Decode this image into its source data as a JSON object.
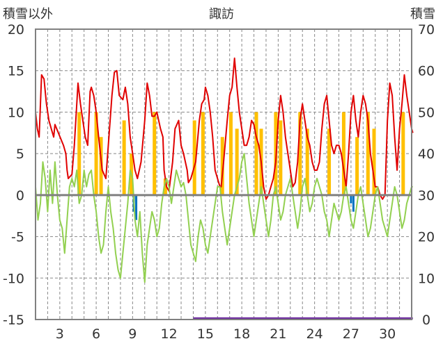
{
  "chart_data": {
    "type": "line",
    "title": "諏訪",
    "left_axis_label": "積雪以外",
    "right_axis_label": "積雪",
    "left_ylim": [
      -15,
      20
    ],
    "left_ticks": [
      -15,
      -10,
      -5,
      0,
      5,
      10,
      15,
      20
    ],
    "right_ylim": [
      0,
      70
    ],
    "right_ticks": [
      0,
      10,
      20,
      30,
      40,
      50,
      60,
      70
    ],
    "x_range": [
      1,
      32
    ],
    "x_ticks": [
      3,
      6,
      9,
      12,
      15,
      18,
      21,
      24,
      27,
      30
    ],
    "x_gridlines": [
      2,
      3,
      4,
      5,
      6,
      7,
      8,
      9,
      10,
      11,
      12,
      13,
      14,
      15,
      16,
      17,
      18,
      19,
      20,
      21,
      22,
      23,
      24,
      25,
      26,
      27,
      28,
      29,
      30,
      31
    ],
    "grid": true,
    "series": [
      {
        "key": "temperature",
        "color": "#e00000",
        "points": [
          [
            1.0,
            10
          ],
          [
            1.15,
            8
          ],
          [
            1.3,
            7
          ],
          [
            1.5,
            14.5
          ],
          [
            1.7,
            14
          ],
          [
            1.9,
            11
          ],
          [
            2.1,
            9
          ],
          [
            2.3,
            8
          ],
          [
            2.5,
            7
          ],
          [
            2.6,
            8.5
          ],
          [
            3.3,
            6
          ],
          [
            3.5,
            5
          ],
          [
            3.6,
            3
          ],
          [
            3.7,
            2
          ],
          [
            4.0,
            2.5
          ],
          [
            4.2,
            6
          ],
          [
            4.5,
            13.5
          ],
          [
            4.7,
            11
          ],
          [
            4.9,
            9
          ],
          [
            5.1,
            7
          ],
          [
            5.3,
            6
          ],
          [
            5.5,
            12.5
          ],
          [
            5.6,
            13
          ],
          [
            5.8,
            12
          ],
          [
            6.0,
            10
          ],
          [
            6.2,
            7
          ],
          [
            6.5,
            3
          ],
          [
            6.8,
            2
          ],
          [
            7.0,
            6
          ],
          [
            7.3,
            12
          ],
          [
            7.5,
            14.8
          ],
          [
            7.7,
            15
          ],
          [
            7.9,
            12
          ],
          [
            8.2,
            11.5
          ],
          [
            8.4,
            13
          ],
          [
            8.6,
            11
          ],
          [
            8.8,
            7
          ],
          [
            9.0,
            5
          ],
          [
            9.2,
            3
          ],
          [
            9.4,
            2
          ],
          [
            9.7,
            4
          ],
          [
            10.0,
            9
          ],
          [
            10.2,
            13.5
          ],
          [
            10.4,
            12
          ],
          [
            10.6,
            9.5
          ],
          [
            10.8,
            9.5
          ],
          [
            11.0,
            10
          ],
          [
            11.3,
            8
          ],
          [
            11.5,
            7
          ],
          [
            11.6,
            3
          ],
          [
            11.8,
            1
          ],
          [
            12.0,
            0.5
          ],
          [
            12.3,
            4
          ],
          [
            12.5,
            8
          ],
          [
            12.8,
            9
          ],
          [
            13.0,
            6
          ],
          [
            13.2,
            5
          ],
          [
            13.5,
            3
          ],
          [
            13.6,
            1.5
          ],
          [
            13.8,
            2
          ],
          [
            14.0,
            3
          ],
          [
            14.2,
            4
          ],
          [
            14.5,
            9
          ],
          [
            14.7,
            11
          ],
          [
            14.9,
            11.5
          ],
          [
            15.0,
            13
          ],
          [
            15.2,
            12
          ],
          [
            15.4,
            10
          ],
          [
            15.6,
            7
          ],
          [
            15.8,
            3
          ],
          [
            16.0,
            2
          ],
          [
            16.2,
            1
          ],
          [
            16.3,
            1
          ],
          [
            16.5,
            4
          ],
          [
            16.8,
            9
          ],
          [
            17.0,
            12
          ],
          [
            17.2,
            13
          ],
          [
            17.4,
            16.5
          ],
          [
            17.6,
            13
          ],
          [
            17.8,
            10
          ],
          [
            18.0,
            8
          ],
          [
            18.2,
            6
          ],
          [
            18.4,
            6
          ],
          [
            18.6,
            7
          ],
          [
            18.8,
            9
          ],
          [
            19.0,
            8.5
          ],
          [
            19.2,
            7
          ],
          [
            19.4,
            6
          ],
          [
            19.6,
            4
          ],
          [
            19.8,
            1
          ],
          [
            20.0,
            -0.5
          ],
          [
            20.2,
            0
          ],
          [
            20.4,
            1
          ],
          [
            20.6,
            2
          ],
          [
            20.8,
            4
          ],
          [
            21.0,
            9
          ],
          [
            21.2,
            12
          ],
          [
            21.4,
            10
          ],
          [
            21.6,
            7
          ],
          [
            21.8,
            5
          ],
          [
            22.0,
            3
          ],
          [
            22.2,
            1
          ],
          [
            22.4,
            1.5
          ],
          [
            22.6,
            4
          ],
          [
            22.8,
            9
          ],
          [
            23.0,
            11
          ],
          [
            23.2,
            9
          ],
          [
            23.4,
            7
          ],
          [
            23.6,
            6
          ],
          [
            23.8,
            4
          ],
          [
            24.0,
            3
          ],
          [
            24.2,
            3
          ],
          [
            24.4,
            4
          ],
          [
            24.6,
            8
          ],
          [
            24.8,
            11
          ],
          [
            25.0,
            12
          ],
          [
            25.2,
            9
          ],
          [
            25.4,
            6
          ],
          [
            25.6,
            5
          ],
          [
            25.8,
            6
          ],
          [
            26.0,
            6
          ],
          [
            26.2,
            5
          ],
          [
            26.4,
            3
          ],
          [
            26.6,
            1
          ],
          [
            26.8,
            5
          ],
          [
            27.0,
            10
          ],
          [
            27.2,
            12
          ],
          [
            27.4,
            9
          ],
          [
            27.6,
            7
          ],
          [
            27.8,
            10
          ],
          [
            28.0,
            12
          ],
          [
            28.2,
            11
          ],
          [
            28.4,
            9
          ],
          [
            28.6,
            5
          ],
          [
            28.8,
            3
          ],
          [
            29.0,
            1
          ],
          [
            29.2,
            1
          ],
          [
            29.4,
            0
          ],
          [
            29.6,
            -0.5
          ],
          [
            29.8,
            0
          ],
          [
            30.0,
            9
          ],
          [
            30.2,
            13.5
          ],
          [
            30.4,
            12
          ],
          [
            30.6,
            7
          ],
          [
            30.8,
            3
          ],
          [
            31.0,
            8
          ],
          [
            31.2,
            11
          ],
          [
            31.4,
            14.5
          ],
          [
            31.6,
            12
          ],
          [
            31.8,
            10
          ],
          [
            32.0,
            8
          ],
          [
            32.1,
            7.5
          ]
        ]
      },
      {
        "key": "series-green",
        "color": "#92d050",
        "points": [
          [
            1.0,
            1
          ],
          [
            1.2,
            -3
          ],
          [
            1.4,
            -1
          ],
          [
            1.6,
            4
          ],
          [
            1.8,
            2
          ],
          [
            2.0,
            -2
          ],
          [
            2.2,
            3
          ],
          [
            2.4,
            -1
          ],
          [
            2.6,
            4
          ],
          [
            2.8,
            0
          ],
          [
            3.0,
            -3
          ],
          [
            3.2,
            -4
          ],
          [
            3.4,
            -7
          ],
          [
            3.6,
            -3
          ],
          [
            3.8,
            1
          ],
          [
            4.0,
            2
          ],
          [
            4.2,
            1
          ],
          [
            4.4,
            3
          ],
          [
            4.6,
            -1
          ],
          [
            4.8,
            0
          ],
          [
            5.0,
            3
          ],
          [
            5.2,
            1
          ],
          [
            5.4,
            2.5
          ],
          [
            5.6,
            3
          ],
          [
            5.8,
            0
          ],
          [
            6.0,
            -2
          ],
          [
            6.2,
            -5
          ],
          [
            6.4,
            -7
          ],
          [
            6.6,
            -6
          ],
          [
            6.8,
            -2
          ],
          [
            7.0,
            1
          ],
          [
            7.2,
            -2
          ],
          [
            7.4,
            -4
          ],
          [
            7.6,
            -7
          ],
          [
            7.8,
            -9
          ],
          [
            8.0,
            -10
          ],
          [
            8.2,
            -7
          ],
          [
            8.4,
            -4
          ],
          [
            8.6,
            -1
          ],
          [
            8.8,
            3
          ],
          [
            9.0,
            2
          ],
          [
            9.2,
            -3
          ],
          [
            9.4,
            -5
          ],
          [
            9.6,
            -2
          ],
          [
            9.8,
            -7
          ],
          [
            10.0,
            -10.5
          ],
          [
            10.2,
            -6
          ],
          [
            10.4,
            -4
          ],
          [
            10.6,
            -2
          ],
          [
            10.8,
            -3
          ],
          [
            11.0,
            -5
          ],
          [
            11.2,
            -4
          ],
          [
            11.4,
            -1
          ],
          [
            11.6,
            1
          ],
          [
            11.8,
            2
          ],
          [
            12.0,
            1
          ],
          [
            12.2,
            -1
          ],
          [
            12.4,
            1
          ],
          [
            12.6,
            3
          ],
          [
            12.8,
            2
          ],
          [
            13.0,
            1
          ],
          [
            13.2,
            1.5
          ],
          [
            13.4,
            0
          ],
          [
            13.6,
            -3
          ],
          [
            13.8,
            -6
          ],
          [
            14.0,
            -7
          ],
          [
            14.2,
            -8
          ],
          [
            14.4,
            -5
          ],
          [
            14.6,
            -3
          ],
          [
            14.8,
            -4
          ],
          [
            15.0,
            -6
          ],
          [
            15.2,
            -7
          ],
          [
            15.4,
            -5
          ],
          [
            15.6,
            -3
          ],
          [
            15.8,
            -1
          ],
          [
            16.0,
            1
          ],
          [
            16.2,
            1
          ],
          [
            16.4,
            -2
          ],
          [
            16.6,
            -4
          ],
          [
            16.8,
            -6
          ],
          [
            17.0,
            -4
          ],
          [
            17.2,
            -2
          ],
          [
            17.4,
            0
          ],
          [
            17.6,
            1
          ],
          [
            17.8,
            2
          ],
          [
            18.0,
            4
          ],
          [
            18.2,
            5
          ],
          [
            18.4,
            2
          ],
          [
            18.6,
            -1
          ],
          [
            18.8,
            -3
          ],
          [
            19.0,
            -5
          ],
          [
            19.2,
            -3
          ],
          [
            19.4,
            -1
          ],
          [
            19.6,
            1
          ],
          [
            19.8,
            -1
          ],
          [
            20.0,
            -3
          ],
          [
            20.2,
            -5
          ],
          [
            20.4,
            -3
          ],
          [
            20.6,
            0
          ],
          [
            20.8,
            1
          ],
          [
            21.0,
            -1
          ],
          [
            21.2,
            -3
          ],
          [
            21.4,
            -2
          ],
          [
            21.6,
            0
          ],
          [
            21.8,
            1
          ],
          [
            22.0,
            2
          ],
          [
            22.2,
            0
          ],
          [
            22.4,
            -2
          ],
          [
            22.6,
            -4
          ],
          [
            22.8,
            -2
          ],
          [
            23.0,
            1
          ],
          [
            23.2,
            2
          ],
          [
            23.4,
            0
          ],
          [
            23.6,
            -2
          ],
          [
            23.8,
            -1
          ],
          [
            24.0,
            1
          ],
          [
            24.2,
            2
          ],
          [
            24.4,
            1
          ],
          [
            24.6,
            0
          ],
          [
            24.8,
            -2
          ],
          [
            25.0,
            -3
          ],
          [
            25.2,
            -5
          ],
          [
            25.4,
            -3
          ],
          [
            25.6,
            -1
          ],
          [
            25.8,
            -2
          ],
          [
            26.0,
            -3
          ],
          [
            26.2,
            -2
          ],
          [
            26.4,
            0
          ],
          [
            26.6,
            1
          ],
          [
            26.8,
            -1
          ],
          [
            27.0,
            -3
          ],
          [
            27.2,
            -4
          ],
          [
            27.4,
            -2
          ],
          [
            27.6,
            0
          ],
          [
            27.8,
            1
          ],
          [
            28.0,
            -1
          ],
          [
            28.2,
            -3
          ],
          [
            28.4,
            -5
          ],
          [
            28.6,
            -4
          ],
          [
            28.8,
            -2
          ],
          [
            29.0,
            0
          ],
          [
            29.2,
            1
          ],
          [
            29.4,
            -1
          ],
          [
            29.6,
            -3
          ],
          [
            29.8,
            -4
          ],
          [
            30.0,
            -5
          ],
          [
            30.2,
            -3
          ],
          [
            30.4,
            -1
          ],
          [
            30.6,
            1
          ],
          [
            30.8,
            0
          ],
          [
            31.0,
            -2
          ],
          [
            31.2,
            -4
          ],
          [
            31.4,
            -3
          ],
          [
            31.6,
            -1
          ],
          [
            31.8,
            0
          ],
          [
            32.0,
            1
          ],
          [
            32.1,
            1
          ]
        ]
      }
    ],
    "bars_orange": {
      "color": "#ffc000",
      "x": [
        4.6,
        6.0,
        6.4,
        8.3,
        8.9,
        10.8,
        11.7,
        14.1,
        14.8,
        16.4,
        17.1,
        17.6,
        19.2,
        19.6,
        20.8,
        21.2,
        22.8,
        23.4,
        25.2,
        26.4,
        27.5,
        28.4,
        28.9,
        31.3
      ],
      "values": [
        10,
        10,
        7,
        9,
        5,
        10,
        2,
        9,
        10,
        7,
        10,
        8,
        10,
        8,
        10,
        9,
        10,
        8,
        8,
        10,
        7,
        10,
        8,
        10
      ]
    },
    "bars_blue": {
      "color": "#0070c0",
      "x": [
        9.1,
        9.3,
        27.0,
        27.2
      ],
      "values": [
        -2,
        -3,
        -1,
        -2
      ]
    },
    "bottom_bar": {
      "color": "#7030a0",
      "x_range": [
        14.0,
        32.1
      ],
      "value_right_axis": 0.2
    }
  }
}
